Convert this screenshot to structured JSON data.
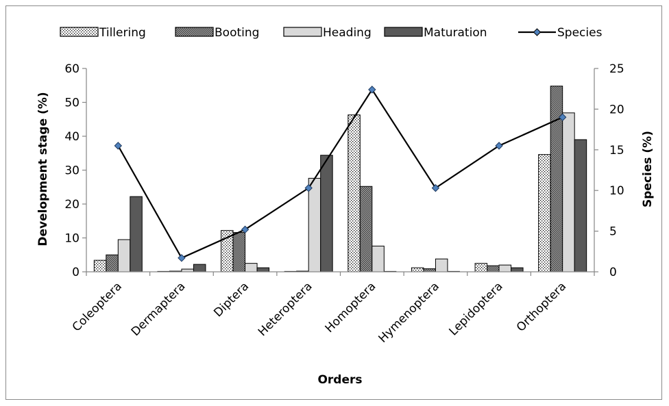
{
  "chart_data": {
    "type": "bar",
    "title": "",
    "xlabel": "Orders",
    "ylabel": "Development stage (%)",
    "y2label": "Species (%)",
    "ylim": [
      0,
      60
    ],
    "y2lim": [
      0,
      25
    ],
    "yticks": [
      0,
      10,
      20,
      30,
      40,
      50,
      60
    ],
    "y2ticks": [
      0,
      5,
      10,
      15,
      20,
      25
    ],
    "grid": false,
    "legend_position": "top",
    "categories": [
      "Coleoptera",
      "Dermaptera",
      "Diptera",
      "Heteroptera",
      "Homoptera",
      "Hymenoptera",
      "Lepidoptera",
      "Orthoptera"
    ],
    "series": [
      {
        "name": "Tillering",
        "kind": "bar",
        "axis": "left",
        "pattern": "dots",
        "values": [
          3.4,
          0,
          12.2,
          0,
          46.3,
          1.2,
          2.5,
          34.6
        ]
      },
      {
        "name": "Booting",
        "kind": "bar",
        "axis": "left",
        "pattern": "crosshatch",
        "values": [
          5.0,
          0.2,
          11.6,
          0.2,
          25.2,
          0.9,
          1.8,
          54.8
        ]
      },
      {
        "name": "Heading",
        "kind": "bar",
        "axis": "left",
        "pattern": "light",
        "values": [
          9.5,
          0.8,
          2.5,
          27.6,
          7.6,
          3.8,
          2.0,
          46.9
        ]
      },
      {
        "name": "Maturation",
        "kind": "bar",
        "axis": "left",
        "pattern": "dark",
        "values": [
          22.2,
          2.2,
          1.2,
          34.4,
          0,
          0,
          1.2,
          39.0
        ]
      },
      {
        "name": "Species",
        "kind": "line",
        "axis": "right",
        "values": [
          15.5,
          1.7,
          5.2,
          10.3,
          22.4,
          10.3,
          15.5,
          19.0
        ]
      }
    ],
    "colors": {
      "light_bar": "#d9d9d9",
      "dark_bar": "#595959",
      "line": "#000000",
      "marker_fill": "#4f81bd"
    }
  }
}
